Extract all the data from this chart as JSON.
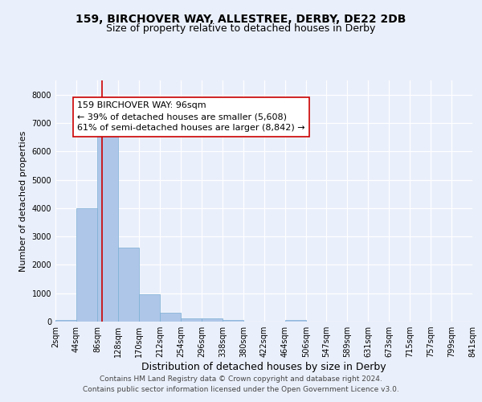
{
  "title1": "159, BIRCHOVER WAY, ALLESTREE, DERBY, DE22 2DB",
  "title2": "Size of property relative to detached houses in Derby",
  "xlabel": "Distribution of detached houses by size in Derby",
  "ylabel": "Number of detached properties",
  "bin_edges": [
    2,
    44,
    86,
    128,
    170,
    212,
    254,
    296,
    338,
    380,
    422,
    464,
    506,
    547,
    589,
    631,
    673,
    715,
    757,
    799,
    841
  ],
  "bar_heights": [
    70,
    4000,
    6600,
    2600,
    950,
    320,
    120,
    100,
    60,
    0,
    0,
    70,
    0,
    0,
    0,
    0,
    0,
    0,
    0,
    0
  ],
  "bar_color": "#aec6e8",
  "bar_edgecolor": "#7aadd4",
  "subject_size": 96,
  "vline_color": "#cc0000",
  "annotation_text": "159 BIRCHOVER WAY: 96sqm\n← 39% of detached houses are smaller (5,608)\n61% of semi-detached houses are larger (8,842) →",
  "annotation_box_edgecolor": "#cc0000",
  "annotation_box_facecolor": "#ffffff",
  "ylim": [
    0,
    8500
  ],
  "yticks": [
    0,
    1000,
    2000,
    3000,
    4000,
    5000,
    6000,
    7000,
    8000
  ],
  "bg_color": "#eaf0fb",
  "plot_bg_color": "#eaf0fb",
  "grid_color": "#ffffff",
  "footer_line1": "Contains HM Land Registry data © Crown copyright and database right 2024.",
  "footer_line2": "Contains public sector information licensed under the Open Government Licence v3.0.",
  "title1_fontsize": 10,
  "title2_fontsize": 9,
  "xlabel_fontsize": 9,
  "ylabel_fontsize": 8,
  "tick_fontsize": 7,
  "annotation_fontsize": 8,
  "footer_fontsize": 6.5
}
